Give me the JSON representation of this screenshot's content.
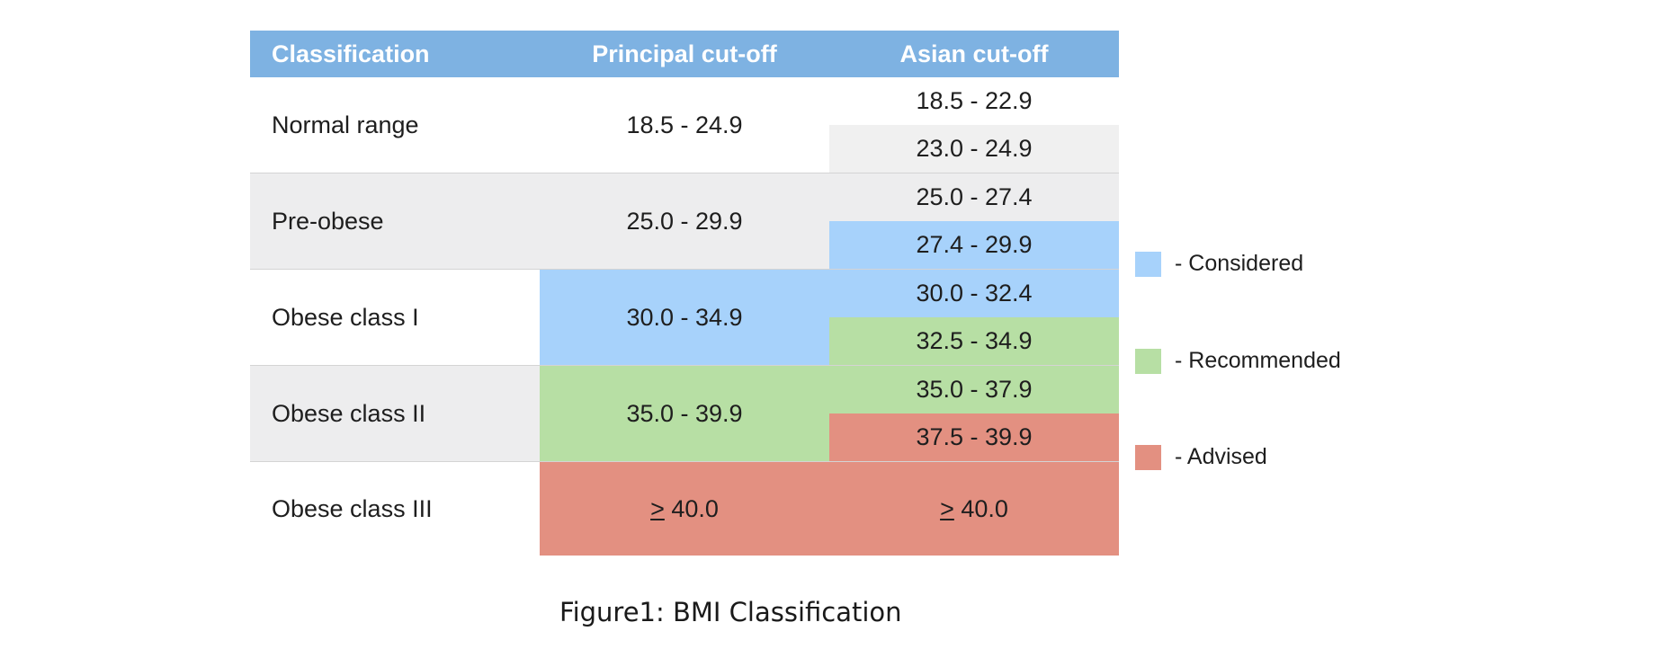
{
  "table": {
    "headers": [
      "Classification",
      "Principal cut-off",
      "Asian cut-off"
    ],
    "rows": [
      {
        "classification": "Normal range",
        "principal": "18.5 - 24.9",
        "asian": [
          "18.5 - 22.9",
          "23.0 - 24.9"
        ]
      },
      {
        "classification": "Pre-obese",
        "principal": "25.0 - 29.9",
        "asian": [
          "25.0 - 27.4",
          "27.4 - 29.9"
        ]
      },
      {
        "classification": "Obese class I",
        "principal": "30.0 - 34.9",
        "asian": [
          "30.0 - 32.4",
          "32.5 - 34.9"
        ]
      },
      {
        "classification": "Obese class II",
        "principal": "35.0 - 39.9",
        "asian": [
          "35.0 - 37.9",
          "37.5 - 39.9"
        ]
      },
      {
        "classification": "Obese class III",
        "principal": "40.0",
        "asian": [
          "40.0"
        ]
      }
    ],
    "gte_symbol": ">"
  },
  "legend": [
    {
      "label": "-  Considered",
      "color": "#a7d2fb"
    },
    {
      "label": "-  Recommended",
      "color": "#b7dfa4"
    },
    {
      "label": "-  Advised",
      "color": "#e39081"
    }
  ],
  "caption": "Figure1: BMI Classification",
  "colors": {
    "header": "#7eb2e2",
    "considered": "#a7d2fb",
    "recommended": "#b7dfa4",
    "advised": "#e39081",
    "grey": "#ededee"
  }
}
